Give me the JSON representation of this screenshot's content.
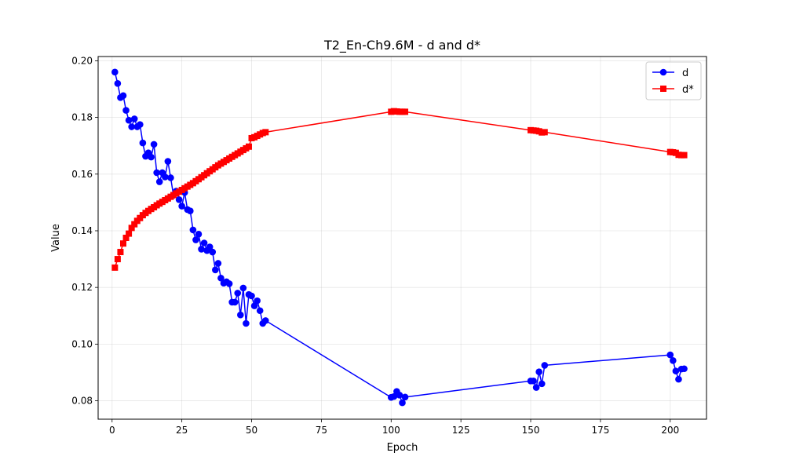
{
  "chart_data": {
    "type": "line",
    "title": "T2_En-Ch9.6M - d and d*",
    "xlabel": "Epoch",
    "ylabel": "Value",
    "xlim": [
      -5,
      213
    ],
    "ylim": [
      0.0735,
      0.2015
    ],
    "xticks": [
      0,
      25,
      50,
      75,
      100,
      125,
      150,
      175,
      200
    ],
    "yticks": [
      0.08,
      0.1,
      0.12,
      0.14,
      0.16,
      0.18,
      0.2
    ],
    "ytick_labels": [
      "0.08",
      "0.10",
      "0.12",
      "0.14",
      "0.16",
      "0.18",
      "0.20"
    ],
    "grid": true,
    "legend_position": "top-right",
    "series": [
      {
        "name": "d",
        "color": "#0000ff",
        "marker": "circle",
        "points": [
          [
            1,
            0.196
          ],
          [
            2,
            0.192
          ],
          [
            3,
            0.187
          ],
          [
            4,
            0.1877
          ],
          [
            5,
            0.1825
          ],
          [
            6,
            0.179
          ],
          [
            7,
            0.1767
          ],
          [
            8,
            0.1795
          ],
          [
            9,
            0.1767
          ],
          [
            10,
            0.1775
          ],
          [
            11,
            0.171
          ],
          [
            12,
            0.1663
          ],
          [
            13,
            0.1675
          ],
          [
            14,
            0.166
          ],
          [
            15,
            0.1705
          ],
          [
            16,
            0.1605
          ],
          [
            17,
            0.1573
          ],
          [
            18,
            0.1605
          ],
          [
            19,
            0.159
          ],
          [
            20,
            0.1645
          ],
          [
            21,
            0.1587
          ],
          [
            22,
            0.1525
          ],
          [
            23,
            0.154
          ],
          [
            24,
            0.151
          ],
          [
            25,
            0.1487
          ],
          [
            26,
            0.1535
          ],
          [
            27,
            0.1475
          ],
          [
            28,
            0.147
          ],
          [
            29,
            0.1403
          ],
          [
            30,
            0.1368
          ],
          [
            31,
            0.1388
          ],
          [
            32,
            0.1335
          ],
          [
            33,
            0.1357
          ],
          [
            34,
            0.133
          ],
          [
            35,
            0.1343
          ],
          [
            36,
            0.1325
          ],
          [
            37,
            0.1262
          ],
          [
            38,
            0.1285
          ],
          [
            39,
            0.1233
          ],
          [
            40,
            0.1215
          ],
          [
            41,
            0.122
          ],
          [
            42,
            0.1213
          ],
          [
            43,
            0.1148
          ],
          [
            44,
            0.1148
          ],
          [
            45,
            0.118
          ],
          [
            46,
            0.1103
          ],
          [
            47,
            0.1198
          ],
          [
            48,
            0.1073
          ],
          [
            49,
            0.1175
          ],
          [
            50,
            0.117
          ],
          [
            51,
            0.1135
          ],
          [
            52,
            0.1153
          ],
          [
            53,
            0.1118
          ],
          [
            54,
            0.1073
          ],
          [
            55,
            0.1083
          ],
          [
            100,
            0.0812
          ],
          [
            101,
            0.0815
          ],
          [
            102,
            0.0833
          ],
          [
            103,
            0.082
          ],
          [
            104,
            0.0793
          ],
          [
            105,
            0.0813
          ],
          [
            150,
            0.087
          ],
          [
            151,
            0.087
          ],
          [
            152,
            0.0847
          ],
          [
            153,
            0.0902
          ],
          [
            154,
            0.086
          ],
          [
            155,
            0.0925
          ],
          [
            200,
            0.0962
          ],
          [
            201,
            0.0942
          ],
          [
            202,
            0.0905
          ],
          [
            203,
            0.0876
          ],
          [
            204,
            0.0912
          ],
          [
            205,
            0.0913
          ]
        ]
      },
      {
        "name": "d*",
        "color": "#ff0000",
        "marker": "square",
        "points": [
          [
            1,
            0.127
          ],
          [
            2,
            0.13
          ],
          [
            3,
            0.1325
          ],
          [
            4,
            0.1355
          ],
          [
            5,
            0.1375
          ],
          [
            6,
            0.139
          ],
          [
            7,
            0.141
          ],
          [
            8,
            0.1423
          ],
          [
            9,
            0.1435
          ],
          [
            10,
            0.1445
          ],
          [
            11,
            0.1455
          ],
          [
            12,
            0.1463
          ],
          [
            13,
            0.147
          ],
          [
            14,
            0.1477
          ],
          [
            15,
            0.1483
          ],
          [
            16,
            0.149
          ],
          [
            17,
            0.1496
          ],
          [
            18,
            0.1502
          ],
          [
            19,
            0.1508
          ],
          [
            20,
            0.1514
          ],
          [
            21,
            0.152
          ],
          [
            22,
            0.1526
          ],
          [
            23,
            0.1532
          ],
          [
            24,
            0.1538
          ],
          [
            25,
            0.1544
          ],
          [
            26,
            0.155
          ],
          [
            27,
            0.1556
          ],
          [
            28,
            0.1562
          ],
          [
            29,
            0.1568
          ],
          [
            30,
            0.1575
          ],
          [
            31,
            0.1582
          ],
          [
            32,
            0.1589
          ],
          [
            33,
            0.1596
          ],
          [
            34,
            0.1603
          ],
          [
            35,
            0.161
          ],
          [
            36,
            0.1617
          ],
          [
            37,
            0.1624
          ],
          [
            38,
            0.1631
          ],
          [
            39,
            0.1637
          ],
          [
            40,
            0.1643
          ],
          [
            41,
            0.1649
          ],
          [
            42,
            0.1655
          ],
          [
            43,
            0.1661
          ],
          [
            44,
            0.1667
          ],
          [
            45,
            0.1673
          ],
          [
            46,
            0.1679
          ],
          [
            47,
            0.1685
          ],
          [
            48,
            0.1691
          ],
          [
            49,
            0.1697
          ],
          [
            50,
            0.1727
          ],
          [
            51,
            0.173
          ],
          [
            52,
            0.1735
          ],
          [
            53,
            0.174
          ],
          [
            54,
            0.1745
          ],
          [
            55,
            0.1748
          ],
          [
            100,
            0.182
          ],
          [
            101,
            0.1822
          ],
          [
            102,
            0.1821
          ],
          [
            103,
            0.182
          ],
          [
            104,
            0.182
          ],
          [
            105,
            0.182
          ],
          [
            150,
            0.1755
          ],
          [
            151,
            0.1754
          ],
          [
            152,
            0.1753
          ],
          [
            153,
            0.1751
          ],
          [
            154,
            0.1747
          ],
          [
            155,
            0.1748
          ],
          [
            200,
            0.1678
          ],
          [
            201,
            0.1677
          ],
          [
            202,
            0.1675
          ],
          [
            203,
            0.1668
          ],
          [
            204,
            0.1667
          ],
          [
            205,
            0.1667
          ]
        ]
      }
    ]
  }
}
